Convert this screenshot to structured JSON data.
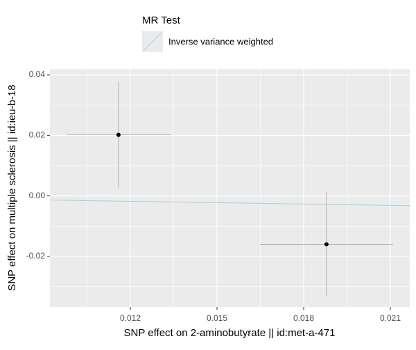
{
  "chart_data": {
    "type": "scatter",
    "legend_title": "MR Test",
    "xlabel": "SNP effect on 2-aminobutyrate || id:met-a-471",
    "ylabel": "SNP effect on multiple sclerosis || id:ieu-b-18",
    "xlim": [
      0.009216,
      0.021672
    ],
    "xticks": [
      0.012,
      0.015,
      0.018,
      0.021
    ],
    "ylim": [
      -0.03672,
      0.04183
    ],
    "yticks": [
      -0.02,
      {
        "value": 0,
        "label": "0.00"
      },
      0.02,
      0.04
    ],
    "grid": true,
    "point_color": "#000000",
    "points": [
      {
        "x": 0.01159,
        "y": 0.0202,
        "x_err": 0.0018,
        "y_err": 0.0175
      },
      {
        "x": 0.01879,
        "y": -0.016,
        "x_err": 0.0023,
        "y_err": 0.0172
      }
    ],
    "lines": [
      {
        "name": "Inverse variance weighted",
        "color": "#a6cee3",
        "slope": -0.149,
        "intercept": 0
      }
    ]
  }
}
